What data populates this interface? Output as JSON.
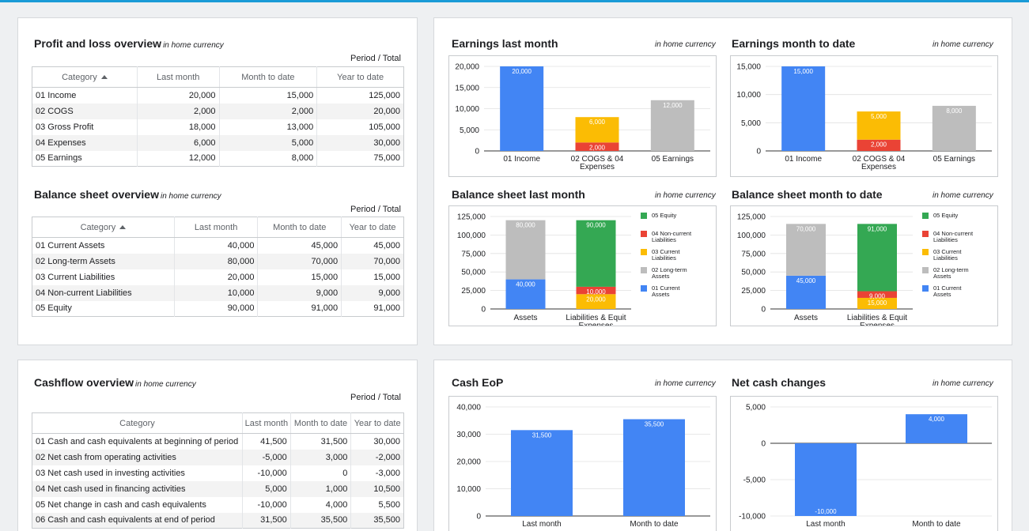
{
  "colors": {
    "income": "#4285f4",
    "cogs": "#ea4335",
    "expenses": "#fbbc04",
    "earnings": "#bdbdbd",
    "equity": "#34a853"
  },
  "pl": {
    "title": "Profit and loss overview",
    "sub": "in home currency",
    "period": "Period / Total",
    "headers": [
      "Category",
      "Last month",
      "Month to date",
      "Year to date"
    ],
    "rows": [
      [
        "01 Income",
        "20,000",
        "15,000",
        "125,000"
      ],
      [
        "02 COGS",
        "2,000",
        "2,000",
        "20,000"
      ],
      [
        "03 Gross Profit",
        "18,000",
        "13,000",
        "105,000"
      ],
      [
        "04 Expenses",
        "6,000",
        "5,000",
        "30,000"
      ],
      [
        "05 Earnings",
        "12,000",
        "8,000",
        "75,000"
      ]
    ]
  },
  "bs": {
    "title": "Balance sheet overview",
    "sub": "in home currency",
    "period": "Period / Total",
    "headers": [
      "Category",
      "Last month",
      "Month to date",
      "Year to date"
    ],
    "rows": [
      [
        "01 Current Assets",
        "40,000",
        "45,000",
        "45,000"
      ],
      [
        "02 Long-term Assets",
        "80,000",
        "70,000",
        "70,000"
      ],
      [
        "03 Current Liabilities",
        "20,000",
        "15,000",
        "15,000"
      ],
      [
        "04 Non-current Liabilities",
        "10,000",
        "9,000",
        "9,000"
      ],
      [
        "05 Equity",
        "90,000",
        "91,000",
        "91,000"
      ]
    ]
  },
  "cf": {
    "title": "Cashflow overview",
    "sub": "in home currency",
    "period": "Period / Total",
    "headers": [
      "Category",
      "Last month",
      "Month to date",
      "Year to date"
    ],
    "rows": [
      [
        "01 Cash and cash equivalents at beginning of period",
        "41,500",
        "31,500",
        "30,000"
      ],
      [
        "02 Net cash from operating activities",
        "-5,000",
        "3,000",
        "-2,000"
      ],
      [
        "03 Net cash used in investing activities",
        "-10,000",
        "0",
        "-3,000"
      ],
      [
        "04 Net cash used in financing activities",
        "5,000",
        "1,000",
        "10,500"
      ],
      [
        "05 Net change in cash and cash equivalents",
        "-10,000",
        "4,000",
        "5,500"
      ],
      [
        "06 Cash and cash equivalents at end of period",
        "31,500",
        "35,500",
        "35,500"
      ]
    ]
  },
  "chart_data": [
    {
      "id": "earnings-last-month",
      "type": "bar",
      "title": "Earnings last month",
      "subtitle": "in home currency",
      "categories": [
        "01 Income",
        "02 COGS & 04 Expenses",
        "05 Earnings"
      ],
      "series": [
        {
          "name": "Income",
          "color": "#4285f4",
          "values": [
            20000,
            0,
            0
          ]
        },
        {
          "name": "COGS",
          "color": "#ea4335",
          "values": [
            0,
            2000,
            0
          ]
        },
        {
          "name": "Expenses",
          "color": "#fbbc04",
          "values": [
            0,
            6000,
            0
          ]
        },
        {
          "name": "Earnings",
          "color": "#bdbdbd",
          "values": [
            0,
            0,
            12000
          ]
        }
      ],
      "ylim": [
        0,
        20000
      ],
      "yticks": [
        0,
        5000,
        10000,
        15000,
        20000
      ],
      "ytick_labels": [
        "0",
        "5,000",
        "10,000",
        "15,000",
        "20,000"
      ],
      "value_labels": [
        [
          "20,000"
        ],
        [
          "2,000",
          "6,000"
        ],
        [
          "12,000"
        ]
      ]
    },
    {
      "id": "earnings-month-to-date",
      "type": "bar",
      "title": "Earnings month to date",
      "subtitle": "in home currency",
      "categories": [
        "01 Income",
        "02 COGS & 04 Expenses",
        "05 Earnings"
      ],
      "series": [
        {
          "name": "Income",
          "color": "#4285f4",
          "values": [
            15000,
            0,
            0
          ]
        },
        {
          "name": "COGS",
          "color": "#ea4335",
          "values": [
            0,
            2000,
            0
          ]
        },
        {
          "name": "Expenses",
          "color": "#fbbc04",
          "values": [
            0,
            5000,
            0
          ]
        },
        {
          "name": "Earnings",
          "color": "#bdbdbd",
          "values": [
            0,
            0,
            8000
          ]
        }
      ],
      "ylim": [
        0,
        15000
      ],
      "yticks": [
        0,
        5000,
        10000,
        15000
      ],
      "ytick_labels": [
        "0",
        "5,000",
        "10,000",
        "15,000"
      ],
      "value_labels": [
        [
          "15,000"
        ],
        [
          "2,000",
          "5,000"
        ],
        [
          "8,000"
        ]
      ]
    },
    {
      "id": "balance-sheet-last-month",
      "type": "bar",
      "title": "Balance sheet last month",
      "subtitle": "in home currency",
      "categories": [
        "Assets",
        "Liabilities & Equity"
      ],
      "series": [
        {
          "name": "01 Current Assets",
          "color": "#4285f4",
          "values": [
            40000,
            0
          ]
        },
        {
          "name": "02 Long-term Assets",
          "color": "#bdbdbd",
          "values": [
            80000,
            0
          ]
        },
        {
          "name": "03 Current Liabilities",
          "color": "#fbbc04",
          "values": [
            0,
            20000
          ]
        },
        {
          "name": "04 Non-current Liabilities",
          "color": "#ea4335",
          "values": [
            0,
            10000
          ]
        },
        {
          "name": "05 Equity",
          "color": "#34a853",
          "values": [
            0,
            90000
          ]
        }
      ],
      "ylim": [
        0,
        125000
      ],
      "yticks": [
        0,
        25000,
        50000,
        75000,
        100000,
        125000
      ],
      "ytick_labels": [
        "0",
        "25,000",
        "50,000",
        "75,000",
        "100,000",
        "125,000"
      ],
      "value_labels": [
        [
          "40,000",
          "80,000"
        ],
        [
          "20,000",
          "10,000",
          "90,000"
        ]
      ],
      "legend": [
        "05 Equity",
        "04 Non-current Liabilities",
        "03 Current Liabilities",
        "02 Long-term Assets",
        "01 Current Assets"
      ]
    },
    {
      "id": "balance-sheet-month-to-date",
      "type": "bar",
      "title": "Balance sheet month to date",
      "subtitle": "in home currency",
      "categories": [
        "Assets",
        "Liabilities & Equity"
      ],
      "series": [
        {
          "name": "01 Current Assets",
          "color": "#4285f4",
          "values": [
            45000,
            0
          ]
        },
        {
          "name": "02 Long-term Assets",
          "color": "#bdbdbd",
          "values": [
            70000,
            0
          ]
        },
        {
          "name": "03 Current Liabilities",
          "color": "#fbbc04",
          "values": [
            0,
            15000
          ]
        },
        {
          "name": "04 Non-current Liabilities",
          "color": "#ea4335",
          "values": [
            0,
            9000
          ]
        },
        {
          "name": "05 Equity",
          "color": "#34a853",
          "values": [
            0,
            91000
          ]
        }
      ],
      "ylim": [
        0,
        125000
      ],
      "yticks": [
        0,
        25000,
        50000,
        75000,
        100000,
        125000
      ],
      "ytick_labels": [
        "0",
        "25,000",
        "50,000",
        "75,000",
        "100,000",
        "125,000"
      ],
      "value_labels": [
        [
          "45,000",
          "70,000"
        ],
        [
          "15,000",
          "9,000",
          "91,000"
        ]
      ],
      "legend": [
        "05 Equity",
        "04 Non-current Liabilities",
        "03 Current Liabilities",
        "02 Long-term Assets",
        "01 Current Assets"
      ]
    },
    {
      "id": "cash-eop",
      "type": "bar",
      "title": "Cash EoP",
      "subtitle": "in home currency",
      "categories": [
        "Last month",
        "Month to date"
      ],
      "series": [
        {
          "name": "Cash EoP",
          "color": "#4285f4",
          "values": [
            31500,
            35500
          ]
        }
      ],
      "ylim": [
        0,
        40000
      ],
      "yticks": [
        0,
        10000,
        20000,
        30000,
        40000
      ],
      "ytick_labels": [
        "0",
        "10,000",
        "20,000",
        "30,000",
        "40,000"
      ],
      "value_labels": [
        [
          "31,500"
        ],
        [
          "35,500"
        ]
      ]
    },
    {
      "id": "net-cash-changes",
      "type": "bar",
      "title": "Net cash changes",
      "subtitle": "in home currency",
      "categories": [
        "Last month",
        "Month to date"
      ],
      "series": [
        {
          "name": "Net cash change",
          "color": "#4285f4",
          "values": [
            -10000,
            4000
          ]
        }
      ],
      "ylim": [
        -10000,
        5000
      ],
      "yticks": [
        -10000,
        -5000,
        0,
        5000
      ],
      "ytick_labels": [
        "-10,000",
        "-5,000",
        "0",
        "5,000"
      ],
      "value_labels": [
        [
          "-10,000"
        ],
        [
          "4,000"
        ]
      ]
    }
  ]
}
